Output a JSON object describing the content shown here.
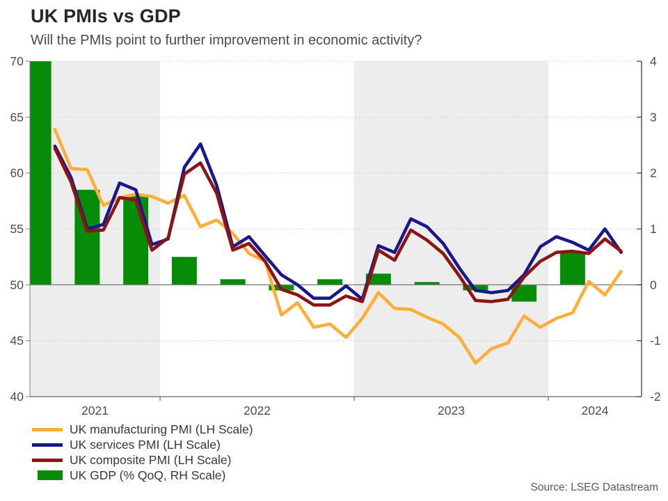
{
  "title": "UK PMIs vs GDP",
  "subtitle": "Will the PMIs point to further improvement in economic activity?",
  "source": "Source: LSEG Datastream",
  "colors": {
    "manufacturing": "#FFAE38",
    "services": "#18188C",
    "composite": "#8C1414",
    "gdp": "#068C06",
    "band": "#EDEDED",
    "grid": "#C9C9C9",
    "zero_line": "#808080",
    "axis": "#808080",
    "right_axis": "#3C3C3C",
    "tick_label": "#4D4D4D"
  },
  "legend": {
    "items": [
      {
        "label": "UK manufacturing PMI (LH Scale)",
        "type": "line",
        "color": "#FFAE38"
      },
      {
        "label": "UK services PMI (LH Scale)",
        "type": "line",
        "color": "#18188C"
      },
      {
        "label": "UK composite PMI (LH Scale)",
        "type": "line",
        "color": "#8C1414"
      },
      {
        "label": "UK GDP (% QoQ, RH Scale)",
        "type": "bar",
        "color": "#068C06"
      }
    ]
  },
  "chart_data": {
    "type": "combo",
    "title": "UK PMIs vs GDP",
    "subtitle": "Will the PMIs point to further improvement in economic activity?",
    "x_months": [
      "Jun 2021",
      "Jul 2021",
      "Aug 2021",
      "Sep 2021",
      "Oct 2021",
      "Nov 2021",
      "Dec 2021",
      "Jan 2022",
      "Feb 2022",
      "Mar 2022",
      "Apr 2022",
      "May 2022",
      "Jun 2022",
      "Jul 2022",
      "Aug 2022",
      "Sep 2022",
      "Oct 2022",
      "Nov 2022",
      "Dec 2022",
      "Jan 2023",
      "Feb 2023",
      "Mar 2023",
      "Apr 2023",
      "May 2023",
      "Jun 2023",
      "Jul 2023",
      "Aug 2023",
      "Sep 2023",
      "Oct 2023",
      "Nov 2023",
      "Dec 2023",
      "Jan 2024",
      "Feb 2024",
      "Mar 2024",
      "Apr 2024",
      "May 2024"
    ],
    "series": [
      {
        "name": "UK manufacturing PMI (LH Scale)",
        "key": "manufacturing",
        "type": "line",
        "axis": "left",
        "color": "#FFAE38",
        "values": [
          63.9,
          60.4,
          60.3,
          57.1,
          57.8,
          58.1,
          57.9,
          57.3,
          58.0,
          55.2,
          55.8,
          54.6,
          52.8,
          52.1,
          47.3,
          48.4,
          46.2,
          46.5,
          45.3,
          47.0,
          49.3,
          47.9,
          47.8,
          47.1,
          46.5,
          45.3,
          43.0,
          44.3,
          44.8,
          47.2,
          46.2,
          47.0,
          47.5,
          50.3,
          49.1,
          51.2
        ]
      },
      {
        "name": "UK services PMI (LH Scale)",
        "key": "services",
        "type": "line",
        "axis": "left",
        "color": "#18188C",
        "values": [
          62.4,
          59.6,
          55.0,
          55.4,
          59.1,
          58.5,
          53.6,
          54.1,
          60.5,
          62.6,
          58.9,
          53.4,
          54.3,
          52.6,
          50.9,
          50.0,
          48.8,
          48.8,
          49.9,
          48.7,
          53.5,
          52.9,
          55.9,
          55.2,
          53.7,
          51.5,
          49.5,
          49.3,
          49.5,
          50.9,
          53.4,
          54.3,
          53.8,
          53.1,
          55.0,
          52.9
        ]
      },
      {
        "name": "UK composite PMI (LH Scale)",
        "key": "composite",
        "type": "line",
        "axis": "left",
        "color": "#8C1414",
        "values": [
          62.2,
          59.2,
          54.8,
          54.9,
          57.8,
          57.6,
          53.1,
          54.2,
          59.9,
          60.9,
          58.2,
          53.1,
          53.7,
          52.1,
          49.6,
          49.1,
          48.2,
          48.2,
          49.0,
          48.5,
          53.1,
          52.2,
          54.9,
          54.0,
          52.8,
          50.8,
          48.6,
          48.5,
          48.7,
          50.7,
          52.1,
          52.9,
          53.0,
          52.8,
          54.1,
          53.0
        ]
      }
    ],
    "gdp_bars": {
      "name": "UK GDP (% QoQ, RH Scale)",
      "key": "gdp",
      "type": "bar",
      "axis": "right",
      "color": "#068C06",
      "quarters": [
        "Q2 2021",
        "Q3 2021",
        "Q4 2021",
        "Q1 2022",
        "Q2 2022",
        "Q3 2022",
        "Q4 2022",
        "Q1 2023",
        "Q2 2023",
        "Q3 2023",
        "Q4 2023",
        "Q1 2024"
      ],
      "values": [
        5.5,
        1.7,
        1.6,
        0.5,
        0.1,
        -0.1,
        0.1,
        0.2,
        0.05,
        -0.1,
        -0.3,
        0.6
      ],
      "note_first_bar": "Q2 2021 bar is clipped at top of right axis (4)"
    },
    "axes": {
      "left": {
        "ticks": [
          70,
          65,
          60,
          55,
          50,
          45,
          40
        ],
        "range": [
          40,
          70
        ]
      },
      "right": {
        "ticks": [
          4,
          3,
          2,
          1,
          0,
          -1,
          -2
        ],
        "range": [
          -2,
          4
        ]
      },
      "x": {
        "year_labels": [
          "2021",
          "2022",
          "2023",
          "2024"
        ]
      }
    },
    "grid": {
      "dotted_left_values": [
        70,
        65,
        60,
        55,
        45
      ],
      "zero_line_left_value": 50
    },
    "layout_hint": {
      "gray_year_bands": [
        "2021",
        "2023"
      ],
      "legend_position": "bottom-left",
      "grid": "dotted-horizontal"
    }
  }
}
